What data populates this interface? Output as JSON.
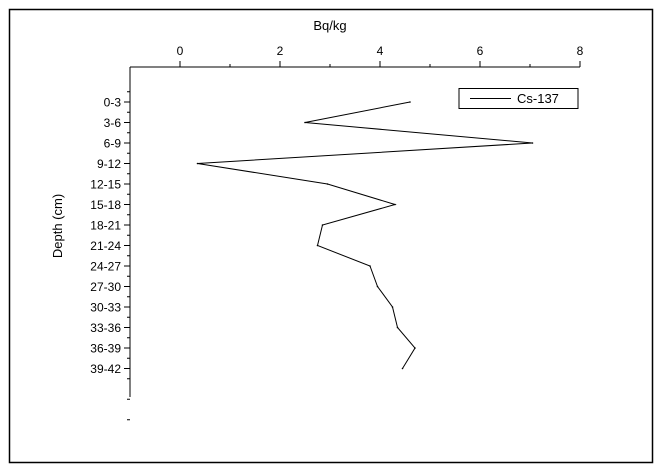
{
  "chart_data": {
    "type": "line",
    "title": "",
    "xlabel": "Bq/kg",
    "ylabel": "Depth (cm)",
    "xlim": [
      -1,
      8
    ],
    "xticks": [
      0,
      2,
      4,
      6,
      8
    ],
    "x_axis_position": "top",
    "y_axis_inverted": true,
    "grid": false,
    "legend_position": "top-right",
    "categories": [
      "0-3",
      "3-6",
      "6-9",
      "9-12",
      "12-15",
      "15-18",
      "18-21",
      "21-24",
      "24-27",
      "27-30",
      "30-33",
      "33-36",
      "36-39",
      "39-42"
    ],
    "series": [
      {
        "name": "Cs-137",
        "color": "#000000",
        "values": [
          4.6,
          2.5,
          7.05,
          0.35,
          2.95,
          4.3,
          2.85,
          2.75,
          3.8,
          3.95,
          4.25,
          4.35,
          4.7,
          4.45
        ]
      }
    ]
  }
}
